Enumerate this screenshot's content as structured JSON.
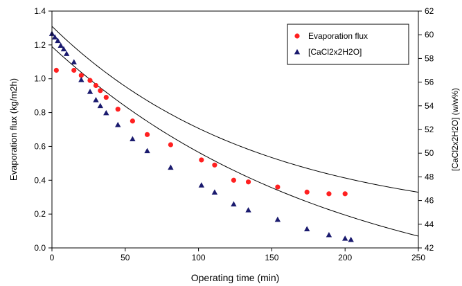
{
  "chart_data": {
    "type": "scatter",
    "xlabel": "Operating time (min)",
    "ylabel_left": "Evaporation flux (kg/m2h)",
    "ylabel_right": "[CaCl2x2H2O] (w/w%)",
    "xlim": [
      0,
      250
    ],
    "ylim_left": [
      0.0,
      1.4
    ],
    "ylim_right": [
      42,
      62
    ],
    "x_ticks": [
      0,
      50,
      100,
      150,
      200,
      250
    ],
    "y_left_ticks": [
      "0.0",
      "0.2",
      "0.4",
      "0.6",
      "0.8",
      "1.0",
      "1.2",
      "1.4"
    ],
    "y_right_ticks": [
      "42",
      "44",
      "46",
      "48",
      "50",
      "52",
      "54",
      "56",
      "58",
      "60",
      "62"
    ],
    "grid": "none",
    "legend_position": "top-right",
    "series": [
      {
        "name": "Evaporation flux",
        "axis": "left",
        "marker": "circle",
        "color": "#ff2020",
        "x": [
          3,
          15,
          20,
          26,
          30,
          33,
          37,
          45,
          55,
          65,
          81,
          102,
          111,
          124,
          134,
          154,
          174,
          189,
          200
        ],
        "y": [
          1.05,
          1.05,
          1.02,
          0.99,
          0.96,
          0.93,
          0.89,
          0.82,
          0.75,
          0.67,
          0.61,
          0.52,
          0.49,
          0.4,
          0.39,
          0.36,
          0.33,
          0.32,
          0.32
        ]
      },
      {
        "name": "[CaCl2x2H2O]",
        "axis": "right",
        "marker": "triangle",
        "color": "#1a1a6e",
        "x": [
          0,
          2,
          4,
          6,
          8,
          10,
          15,
          20,
          26,
          30,
          33,
          37,
          45,
          55,
          65,
          81,
          102,
          111,
          124,
          134,
          154,
          174,
          189,
          200,
          204
        ],
        "y": [
          60.1,
          59.8,
          59.5,
          59.1,
          58.8,
          58.4,
          57.7,
          56.2,
          55.2,
          54.5,
          54.0,
          53.4,
          52.4,
          51.2,
          50.2,
          48.8,
          47.3,
          46.7,
          45.7,
          45.2,
          44.4,
          43.6,
          43.1,
          42.8,
          42.7
        ]
      }
    ],
    "fit_curves": [
      {
        "series": "Evaporation flux",
        "axis": "left",
        "a": 1.175,
        "k": 0.0072,
        "c": 0.135,
        "x_range": [
          0,
          250
        ],
        "color": "#000000"
      },
      {
        "series": "[CaCl2x2H2O]",
        "axis": "right",
        "a": 22.0,
        "k": 0.0052,
        "c": 37.0,
        "x_range": [
          0,
          250
        ],
        "color": "#000000"
      }
    ]
  }
}
